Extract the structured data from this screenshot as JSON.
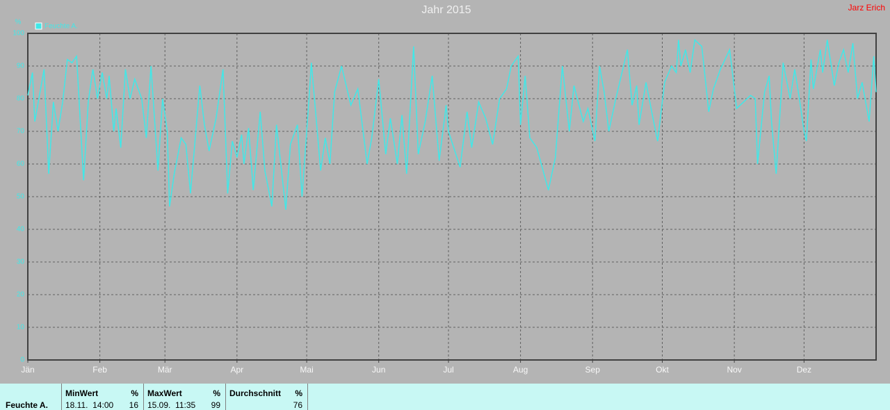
{
  "chart_data": {
    "type": "line",
    "title": "Jahr 2015",
    "user": "Jarz Erich",
    "ylabel": "%",
    "xlim": [
      0,
      365
    ],
    "xticks": [
      {
        "value": 0,
        "label": "Jän"
      },
      {
        "value": 31,
        "label": "Feb"
      },
      {
        "value": 59,
        "label": "Mär"
      },
      {
        "value": 90,
        "label": "Apr"
      },
      {
        "value": 120,
        "label": "Mai"
      },
      {
        "value": 151,
        "label": "Jun"
      },
      {
        "value": 181,
        "label": "Jul"
      },
      {
        "value": 212,
        "label": "Aug"
      },
      {
        "value": 243,
        "label": "Sep"
      },
      {
        "value": 273,
        "label": "Okt"
      },
      {
        "value": 304,
        "label": "Nov"
      },
      {
        "value": 334,
        "label": "Dez"
      }
    ],
    "ylim": [
      0,
      100
    ],
    "yticks": [
      0,
      10,
      20,
      30,
      40,
      50,
      60,
      70,
      80,
      90,
      100
    ],
    "grid": true,
    "legend": "top-left",
    "x": [
      0,
      2,
      3,
      7,
      9,
      11,
      13,
      15,
      17,
      19,
      21,
      24,
      26,
      28,
      30,
      32,
      34,
      35,
      37,
      38,
      40,
      42,
      44,
      46,
      49,
      51,
      53,
      56,
      58,
      60,
      61,
      63,
      66,
      68,
      70,
      74,
      76,
      78,
      81,
      84,
      86,
      88,
      90,
      92,
      93,
      95,
      97,
      100,
      102,
      105,
      107,
      111,
      113,
      116,
      118,
      121,
      122,
      126,
      128,
      130,
      132,
      135,
      139,
      142,
      146,
      148,
      151,
      154,
      156,
      159,
      161,
      163,
      166,
      168,
      171,
      174,
      177,
      180,
      181,
      186,
      189,
      191,
      194,
      197,
      200,
      203,
      206,
      208,
      211,
      212,
      214,
      216,
      219,
      224,
      227,
      230,
      233,
      235,
      239,
      241,
      244,
      246,
      248,
      250,
      253,
      258,
      260,
      262,
      263,
      266,
      269,
      271,
      274,
      277,
      279,
      280,
      281,
      283,
      285,
      287,
      290,
      293,
      295,
      298,
      302,
      305,
      308,
      311,
      313,
      314,
      317,
      319,
      320,
      322,
      325,
      328,
      330,
      332,
      334,
      335,
      337,
      338,
      341,
      342,
      344,
      347,
      349,
      351,
      353,
      355,
      357,
      359,
      362,
      364,
      365
    ],
    "series": [
      {
        "name": "Feuchte A.",
        "color": "#40e8e8",
        "values": [
          81,
          88,
          73,
          89,
          57,
          79,
          70,
          79,
          92,
          91,
          93,
          55,
          79,
          89,
          80,
          88,
          80,
          87,
          70,
          77,
          65,
          89,
          80,
          86,
          80,
          68,
          90,
          58,
          80,
          70,
          47,
          57,
          68,
          66,
          51,
          84,
          72,
          64,
          74,
          89,
          51,
          67,
          62,
          69,
          60,
          71,
          52,
          76,
          58,
          47,
          72,
          46,
          66,
          72,
          50,
          80,
          91,
          58,
          68,
          60,
          82,
          90,
          78,
          83,
          60,
          68,
          86,
          63,
          74,
          60,
          75,
          57,
          96,
          63,
          73,
          87,
          61,
          78,
          70,
          59,
          76,
          65,
          79,
          74,
          66,
          80,
          83,
          90,
          93,
          72,
          87,
          68,
          65,
          52,
          62,
          90,
          70,
          84,
          73,
          77,
          67,
          90,
          82,
          70,
          80,
          95,
          78,
          84,
          72,
          85,
          74,
          67,
          85,
          90,
          88,
          98,
          90,
          95,
          88,
          98,
          96,
          76,
          83,
          89,
          95,
          77,
          79,
          81,
          80,
          60,
          82,
          87,
          73,
          57,
          91,
          80,
          89,
          80,
          70,
          67,
          92,
          83,
          95,
          88,
          98,
          84,
          91,
          95,
          88,
          97,
          80,
          85,
          73,
          93,
          82
        ]
      }
    ]
  },
  "stats": {
    "row": "Feuchte A.",
    "columns": [
      {
        "header": "MinWert",
        "unit": "%",
        "time": "18.11.  14:00",
        "value": "16"
      },
      {
        "header": "MaxWert",
        "unit": "%",
        "time": "15.09.  11:35",
        "value": "99"
      },
      {
        "header": "Durchschnitt",
        "unit": "%",
        "value": "76"
      }
    ]
  }
}
